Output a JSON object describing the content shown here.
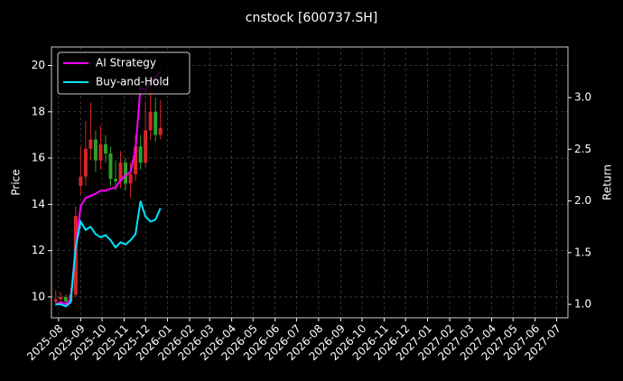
{
  "chart_data": {
    "type": "candlestick",
    "title": "cnstock [600737.SH]",
    "ylabel": "Price",
    "y2label": "Return",
    "x": [
      "2025-07-28",
      "2025-08-04",
      "2025-08-11",
      "2025-08-18",
      "2025-08-25",
      "2025-09-01",
      "2025-09-08",
      "2025-09-15",
      "2025-09-22",
      "2025-09-29",
      "2025-10-06",
      "2025-10-13",
      "2025-10-20",
      "2025-10-27",
      "2025-11-03",
      "2025-11-10",
      "2025-11-17",
      "2025-11-24",
      "2025-12-01",
      "2025-12-08",
      "2025-12-15",
      "2025-12-22"
    ],
    "open": [
      9.8,
      9.9,
      10.0,
      9.8,
      10.1,
      14.8,
      15.2,
      16.4,
      16.8,
      15.9,
      16.6,
      16.2,
      15.1,
      15.0,
      15.8,
      14.9,
      15.3,
      16.5,
      15.8,
      17.2,
      18.0,
      17.0
    ],
    "high": [
      10.3,
      10.2,
      10.1,
      10.4,
      13.9,
      16.5,
      17.6,
      18.4,
      17.2,
      17.4,
      17.0,
      16.5,
      15.9,
      16.3,
      16.0,
      15.8,
      17.0,
      17.0,
      18.4,
      19.0,
      18.6,
      18.5
    ],
    "low": [
      9.6,
      9.7,
      9.6,
      9.7,
      10.0,
      14.4,
      14.8,
      15.9,
      15.4,
      15.5,
      15.8,
      14.8,
      14.6,
      14.7,
      14.6,
      14.3,
      15.0,
      15.5,
      15.6,
      16.8,
      16.7,
      16.8
    ],
    "close": [
      9.9,
      10.0,
      9.8,
      10.1,
      13.5,
      15.2,
      16.4,
      16.8,
      15.9,
      16.6,
      16.2,
      15.1,
      15.0,
      15.8,
      14.9,
      15.3,
      16.5,
      15.8,
      17.2,
      18.0,
      17.0,
      17.3
    ],
    "up_color": "#d62728",
    "down_color": "#2ca02c",
    "series": [
      {
        "name": "AI Strategy",
        "color": "#ff00ff",
        "axis": "y2",
        "values": [
          1.0,
          1.02,
          1.0,
          1.05,
          1.55,
          1.95,
          2.03,
          2.05,
          2.07,
          2.1,
          2.1,
          2.12,
          2.13,
          2.2,
          2.25,
          2.28,
          2.5,
          3.1,
          3.07,
          3.15,
          3.2,
          3.25
        ]
      },
      {
        "name": "Buy-and-Hold",
        "color": "#00e5ff",
        "axis": "y2",
        "values": [
          1.0,
          1.0,
          0.98,
          1.02,
          1.55,
          1.8,
          1.72,
          1.75,
          1.68,
          1.65,
          1.67,
          1.62,
          1.55,
          1.6,
          1.58,
          1.62,
          1.68,
          2.0,
          1.85,
          1.8,
          1.82,
          1.93
        ]
      }
    ],
    "xlim": [
      "2025-07-22",
      "2027-07-17"
    ],
    "xticks": [
      "2025-08",
      "2025-09",
      "2025-10",
      "2025-11",
      "2025-12",
      "2026-01",
      "2026-02",
      "2026-03",
      "2026-04",
      "2026-05",
      "2026-06",
      "2026-07",
      "2026-08",
      "2026-09",
      "2026-10",
      "2026-11",
      "2026-12",
      "2027-01",
      "2027-02",
      "2027-03",
      "2027-04",
      "2027-05",
      "2027-06",
      "2027-07"
    ],
    "ylim": [
      9.1,
      20.8
    ],
    "yticks": [
      10,
      12,
      14,
      16,
      18,
      20
    ],
    "y2lim": [
      0.87,
      3.49
    ],
    "y2ticks": [
      {
        "value": 1,
        "label": "1.0"
      },
      1.5,
      {
        "value": 2,
        "label": "2.0"
      },
      2.5,
      {
        "value": 3,
        "label": "3.0"
      }
    ],
    "grid": true,
    "legend": "upper left"
  }
}
